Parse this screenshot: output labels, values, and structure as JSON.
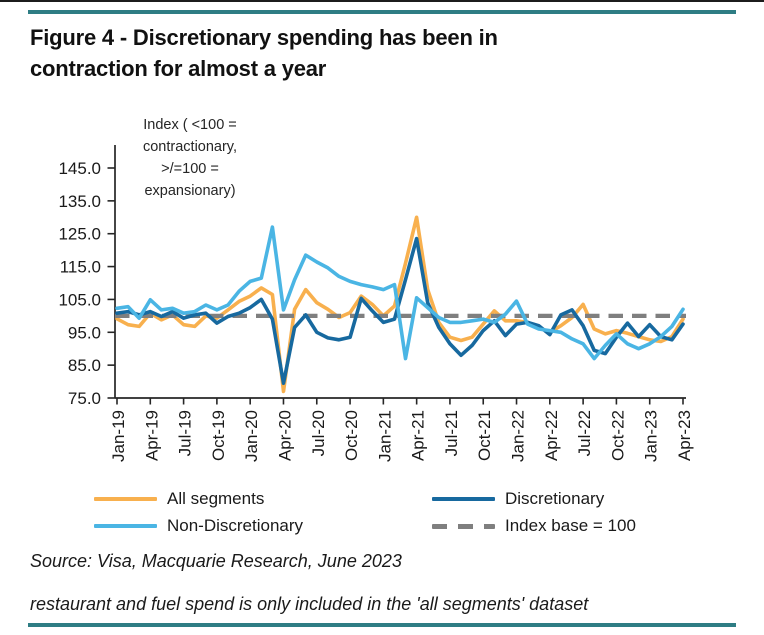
{
  "page": {
    "title_lines": [
      "Figure 4 - Discretionary spending has been in",
      "contraction for almost a year"
    ],
    "source_line": "Source: Visa, Macquarie Research, June 2023",
    "footnote_line": "restaurant and fuel spend is only included in the 'all segments' dataset",
    "accent_rule_color": "#2e7d84"
  },
  "chart_data": {
    "type": "line",
    "annotation_lines": [
      "Index ( <100 =",
      "contractionary,",
      ">/=100 =",
      "expansionary)"
    ],
    "ylim": [
      75,
      145
    ],
    "yticks": [
      {
        "value": 75,
        "label": "75.0"
      },
      {
        "value": 85,
        "label": "85.0"
      },
      {
        "value": 95,
        "label": "95.0"
      },
      {
        "value": 105,
        "label": "105.0"
      },
      {
        "value": 115,
        "label": "115.0"
      },
      {
        "value": 125,
        "label": "125.0"
      },
      {
        "value": 135,
        "label": "135.0"
      },
      {
        "value": 145,
        "label": "145.0"
      }
    ],
    "x": [
      "Jan-19",
      "Feb-19",
      "Mar-19",
      "Apr-19",
      "May-19",
      "Jun-19",
      "Jul-19",
      "Aug-19",
      "Sep-19",
      "Oct-19",
      "Nov-19",
      "Dec-19",
      "Jan-20",
      "Feb-20",
      "Mar-20",
      "Apr-20",
      "May-20",
      "Jun-20",
      "Jul-20",
      "Aug-20",
      "Sep-20",
      "Oct-20",
      "Nov-20",
      "Dec-20",
      "Jan-21",
      "Feb-21",
      "Mar-21",
      "Apr-21",
      "May-21",
      "Jun-21",
      "Jul-21",
      "Aug-21",
      "Sep-21",
      "Oct-21",
      "Nov-21",
      "Dec-21",
      "Jan-22",
      "Feb-22",
      "Mar-22",
      "Apr-22",
      "May-22",
      "Jun-22",
      "Jul-22",
      "Aug-22",
      "Sep-22",
      "Oct-22",
      "Nov-22",
      "Dec-22",
      "Jan-23",
      "Feb-23",
      "Mar-23",
      "Apr-23"
    ],
    "xtick_every": 3,
    "baseline": {
      "label": "Index base = 100",
      "value": 100,
      "color": "#7f7f7f"
    },
    "series": [
      {
        "name": "All segments",
        "color": "#f8b04e",
        "values": [
          99.1,
          97.3,
          96.8,
          100.8,
          98.8,
          100.3,
          97.3,
          96.8,
          100.0,
          99.3,
          101.8,
          104.4,
          106.0,
          108.5,
          106.5,
          77.0,
          102.0,
          108.0,
          104.0,
          102.0,
          99.5,
          101.0,
          106.0,
          103.5,
          100.0,
          103.0,
          116.0,
          130.0,
          108.0,
          98.0,
          93.5,
          92.5,
          93.5,
          97.5,
          101.5,
          98.5,
          98.5,
          98.0,
          96.5,
          95.0,
          97.0,
          99.5,
          103.5,
          96.0,
          94.5,
          95.5,
          94.7,
          93.7,
          92.7,
          92.2,
          93.7,
          99.0
        ]
      },
      {
        "name": "Discretionary",
        "color": "#17699f",
        "values": [
          100.8,
          101.3,
          100.3,
          101.3,
          99.8,
          101.3,
          99.3,
          100.3,
          100.8,
          97.8,
          99.8,
          100.8,
          102.5,
          105.0,
          99.0,
          79.5,
          96.5,
          100.3,
          95.0,
          93.3,
          92.7,
          93.5,
          105.3,
          101.5,
          98.0,
          99.0,
          111.0,
          123.5,
          104.0,
          96.5,
          91.5,
          88.0,
          91.0,
          95.5,
          98.5,
          94.0,
          97.5,
          98.0,
          97.0,
          94.3,
          100.3,
          101.8,
          97.0,
          89.5,
          88.5,
          93.5,
          97.8,
          93.7,
          97.3,
          93.7,
          92.7,
          97.5
        ]
      },
      {
        "name": "Non-Discretionary",
        "color": "#4ab5e4",
        "values": [
          102.3,
          102.8,
          99.3,
          104.9,
          101.8,
          102.3,
          100.8,
          101.3,
          103.3,
          101.8,
          103.3,
          107.5,
          110.5,
          111.5,
          127.0,
          101.8,
          111.0,
          118.5,
          116.4,
          114.6,
          112.0,
          110.5,
          109.5,
          108.8,
          108.0,
          109.5,
          87.0,
          105.5,
          102.5,
          99.5,
          98.0,
          98.0,
          98.5,
          99.0,
          98.0,
          100.5,
          104.5,
          97.5,
          96.0,
          95.5,
          95.0,
          93.0,
          91.5,
          87.0,
          91.0,
          94.5,
          91.5,
          90.0,
          91.5,
          93.7,
          96.8,
          102.0
        ]
      }
    ],
    "legend": [
      {
        "label": "All segments",
        "color": "#f8b04e",
        "style": "solid"
      },
      {
        "label": "Discretionary",
        "color": "#17699f",
        "style": "solid"
      },
      {
        "label": "Non-Discretionary",
        "color": "#4ab5e4",
        "style": "solid"
      },
      {
        "label": "Index base = 100",
        "color": "#7f7f7f",
        "style": "dashed"
      }
    ]
  }
}
